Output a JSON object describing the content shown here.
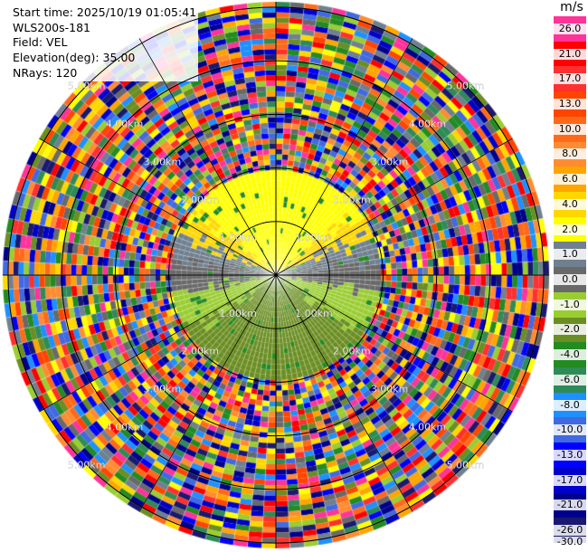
{
  "info": {
    "start_time": "Start time: 2025/10/19 01:05:41",
    "instrument": "WLS200s-181",
    "field": "Field: VEL",
    "elevation": "Elevation(deg): 35.00",
    "nrays": "NRays: 120"
  },
  "colorbar": {
    "unit": "m/s",
    "segments": [
      {
        "label": "26.0",
        "color": "#ff3399"
      },
      {
        "label": "21.0",
        "color": "#ff0000"
      },
      {
        "label": "17.0",
        "color": "#ff3030"
      },
      {
        "label": "13.0",
        "color": "#ff4500"
      },
      {
        "label": "10.0",
        "color": "#ff6a1a"
      },
      {
        "label": "8.0",
        "color": "#ff8c33"
      },
      {
        "label": "6.0",
        "color": "#ffa500"
      },
      {
        "label": "4.0",
        "color": "#ffd700"
      },
      {
        "label": "2.0",
        "color": "#ffff00"
      },
      {
        "label": "1.0",
        "color": "#708090"
      },
      {
        "label": "0.0",
        "color": "#696969"
      },
      {
        "label": "-1.0",
        "color": "#9acd32"
      },
      {
        "label": "-2.0",
        "color": "#6b8e23"
      },
      {
        "label": "-4.0",
        "color": "#228b22"
      },
      {
        "label": "-6.0",
        "color": "#2e8b57"
      },
      {
        "label": "-8.0",
        "color": "#1e90ff"
      },
      {
        "label": "-10.0",
        "color": "#4169e1"
      },
      {
        "label": "-13.0",
        "color": "#0000ff"
      },
      {
        "label": "-17.0",
        "color": "#0000cd"
      },
      {
        "label": "-21.0",
        "color": "#00008b"
      },
      {
        "label": "-26.0",
        "color": "#191970"
      }
    ],
    "bottom_label": "-30.0"
  },
  "chart_data": {
    "type": "heatmap",
    "subtype": "polar-ppi",
    "field": "VEL",
    "units": "m/s",
    "nrays": 120,
    "elevation_deg": 35.0,
    "range_ring_labels": [
      "1.00km",
      "2.00km",
      "3.00km",
      "4.00km",
      "5.00km"
    ],
    "range_rings_km": [
      1,
      2,
      3,
      4,
      5
    ],
    "max_range_km": 5.1,
    "value_range": [
      -30,
      26
    ],
    "pattern": {
      "inner_radius_km_valid": 2.0,
      "beyond_valid_range": "noisy",
      "north_half_sign": "positive",
      "south_half_sign": "negative",
      "near_zero_band": "center-crossing"
    }
  }
}
